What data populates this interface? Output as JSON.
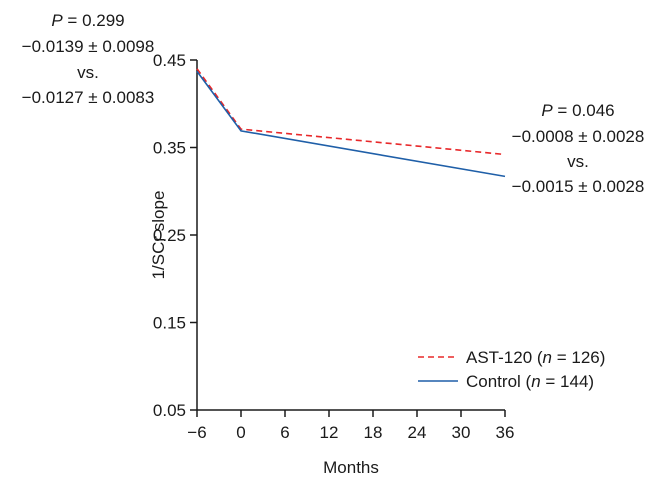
{
  "chart_data": {
    "type": "line",
    "xlabel": "Months",
    "ylabel": "1/SCr slope",
    "xlim": [
      -6,
      36
    ],
    "ylim": [
      0.05,
      0.45
    ],
    "x_ticks": [
      -6,
      0,
      6,
      12,
      18,
      24,
      30,
      36
    ],
    "y_ticks": [
      0.05,
      0.15,
      0.25,
      0.35,
      0.45
    ],
    "x_tick_labels": [
      "−6",
      "0",
      "6",
      "12",
      "18",
      "24",
      "30",
      "36"
    ],
    "y_tick_labels": [
      "0.05",
      "0.15",
      "0.25",
      "0.35",
      "0.45"
    ],
    "grid": false,
    "legend_position": "bottom-right",
    "series": [
      {
        "name": "AST-120",
        "n_label": "n",
        "n_value": " = 126)",
        "color": "#e8282a",
        "style": "dashed",
        "x": [
          -6,
          0,
          36
        ],
        "y": [
          0.44,
          0.371,
          0.342
        ]
      },
      {
        "name": "Control",
        "n_label": "n",
        "n_value": " = 144)",
        "color": "#1f5fa8",
        "style": "solid",
        "x": [
          -6,
          0,
          36
        ],
        "y": [
          0.437,
          0.369,
          0.317
        ]
      }
    ],
    "annotations": {
      "left": {
        "p_label": "P",
        "p_value": " = 0.299",
        "line1": "−0.0139 ± 0.0098",
        "vs": "vs.",
        "line2": "−0.0127 ± 0.0083"
      },
      "right": {
        "p_label": "P",
        "p_value": " = 0.046",
        "line1": "−0.0008 ± 0.0028",
        "vs": "vs.",
        "line2": "−0.0015 ± 0.0028"
      }
    }
  }
}
